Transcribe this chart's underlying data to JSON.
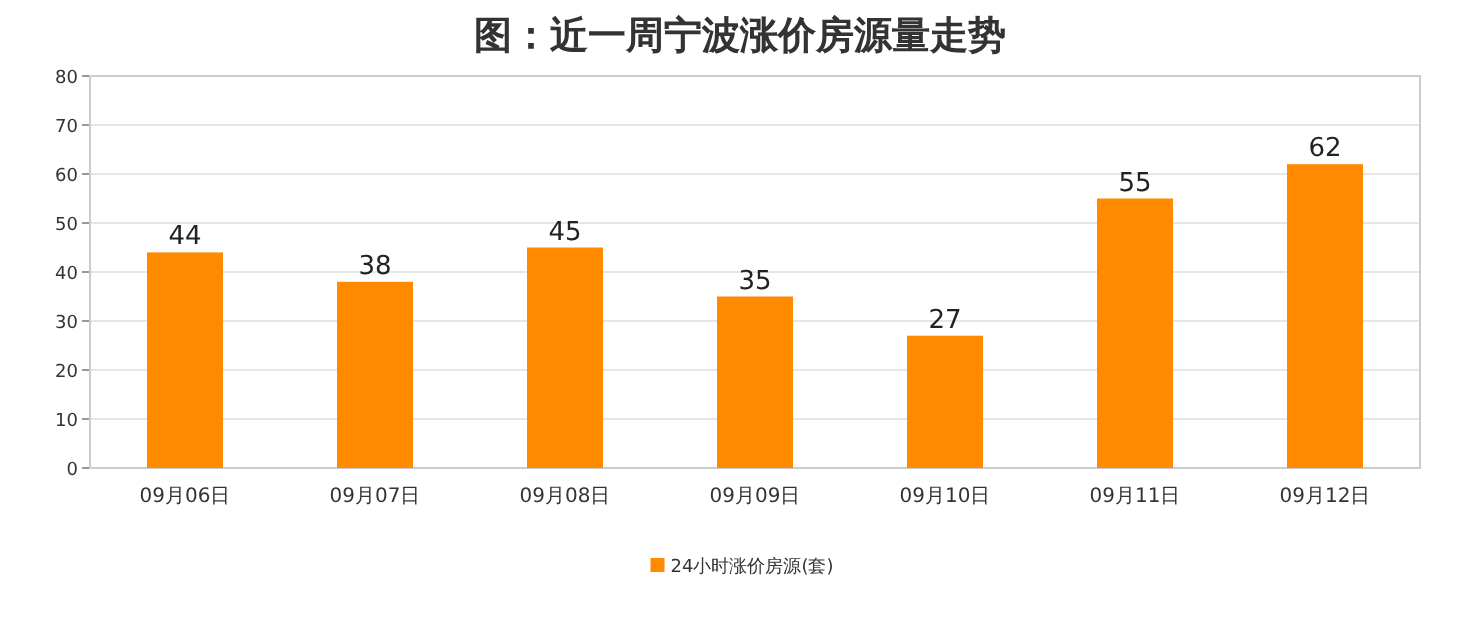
{
  "chart_data": {
    "type": "bar",
    "title": "图：近一周宁波涨价房源量走势",
    "categories": [
      "09月06日",
      "09月07日",
      "09月08日",
      "09月09日",
      "09月10日",
      "09月11日",
      "09月12日"
    ],
    "series": [
      {
        "name": "24小时涨价房源(套)",
        "color": "#ff8a00",
        "values": [
          44,
          38,
          45,
          35,
          27,
          55,
          62
        ]
      }
    ],
    "ylim": [
      0,
      80
    ],
    "yticks": [
      0,
      10,
      20,
      30,
      40,
      50,
      60,
      70,
      80
    ],
    "grid": "y",
    "legend": "bottom",
    "data_labels": true
  }
}
